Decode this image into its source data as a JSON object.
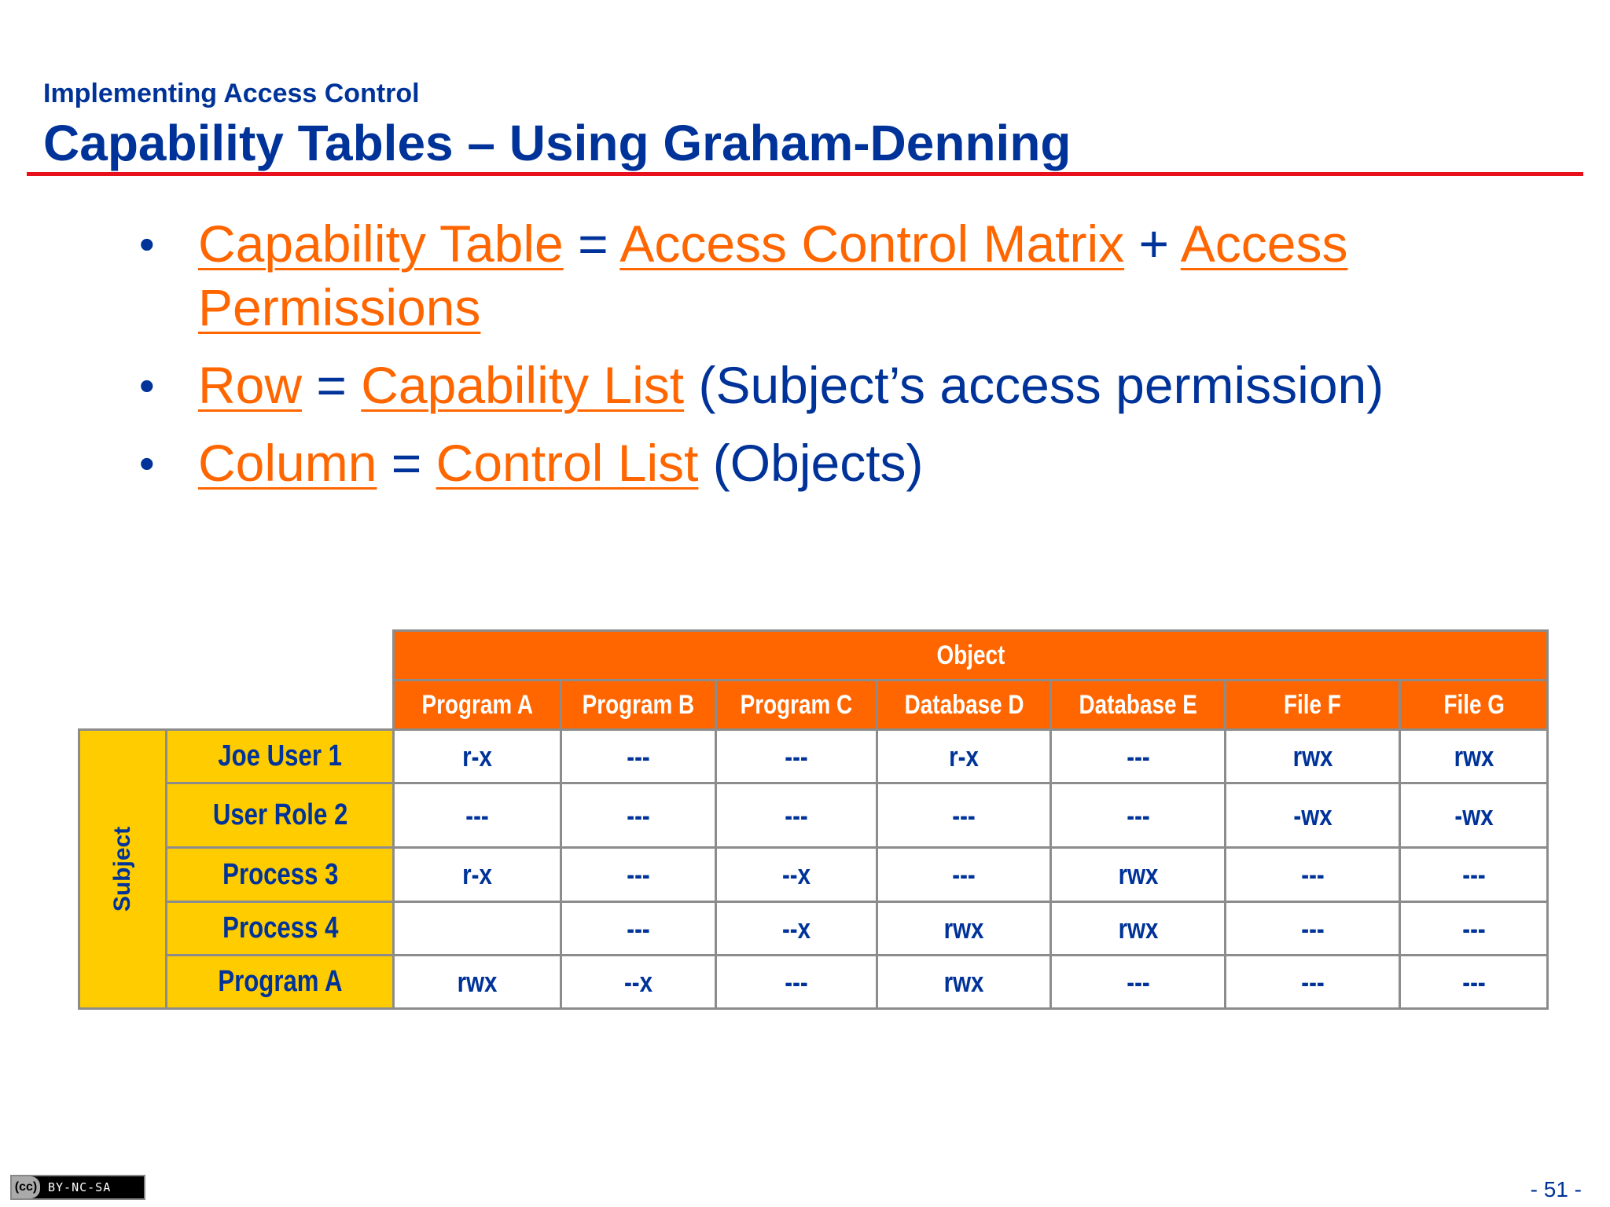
{
  "header": {
    "section": "Implementing Access Control",
    "title": "Capability Tables – Using Graham-Denning"
  },
  "bullets": [
    {
      "parts": [
        "Capability Table",
        " = ",
        "Access Control Matrix",
        " + ",
        "Access Permissions"
      ]
    },
    {
      "parts": [
        "Row",
        " = ",
        "Capability List",
        " (Subject’s access permission)"
      ]
    },
    {
      "parts": [
        "Column",
        " = ",
        "Control List",
        " (Objects)"
      ]
    }
  ],
  "table": {
    "object_label": "Object",
    "subject_label": "Subject",
    "columns": [
      "Program A",
      "Program B",
      "Program C",
      "Database D",
      "Database E",
      "File F",
      "File G"
    ],
    "rows": [
      {
        "subject": "Joe User 1",
        "cells": [
          "r-x",
          "---",
          "---",
          "r-x",
          "---",
          "rwx",
          "rwx"
        ]
      },
      {
        "subject": "User Role 2",
        "cells": [
          "---",
          "---",
          "---",
          "---",
          "---",
          "-wx",
          "-wx"
        ]
      },
      {
        "subject": "Process 3",
        "cells": [
          "r-x",
          "---",
          "--x",
          "---",
          "rwx",
          "---",
          "---"
        ]
      },
      {
        "subject": "Process 4",
        "cells": [
          "",
          "---",
          "--x",
          "rwx",
          "rwx",
          "---",
          "---"
        ]
      },
      {
        "subject": "Program A",
        "cells": [
          "rwx",
          "--x",
          "---",
          "rwx",
          "---",
          "---",
          "---"
        ]
      }
    ]
  },
  "colors": {
    "title_blue": "#003399",
    "link_orange": "#ff6600",
    "header_orange": "#ff6600",
    "subject_yellow": "#ffcc00",
    "rule_red": "#e8101c"
  },
  "footer": {
    "license": "BY-NC-SA",
    "license_icon": "cc",
    "page": "- 51 -"
  }
}
